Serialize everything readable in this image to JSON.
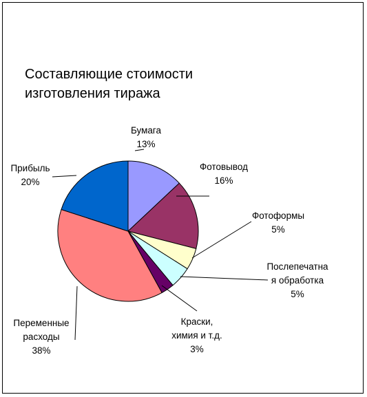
{
  "chart_data": {
    "type": "pie",
    "title_lines": [
      "Составляющие стоимости",
      "изготовления тиража"
    ],
    "slices": [
      {
        "label_lines": [
          "Бумага"
        ],
        "value": 13,
        "pct": "13%",
        "color": "#9999FF"
      },
      {
        "label_lines": [
          "Фотовывод"
        ],
        "value": 16,
        "pct": "16%",
        "color": "#993366"
      },
      {
        "label_lines": [
          "Фотоформы"
        ],
        "value": 5,
        "pct": "5%",
        "color": "#FFFFCC"
      },
      {
        "label_lines": [
          "Послепечатна",
          "я обработка"
        ],
        "value": 5,
        "pct": "5%",
        "color": "#CCFFFF"
      },
      {
        "label_lines": [
          "Краски,",
          "химия и т.д."
        ],
        "value": 3,
        "pct": "3%",
        "color": "#660066"
      },
      {
        "label_lines": [
          "Переменные",
          "расходы"
        ],
        "value": 38,
        "pct": "38%",
        "color": "#FF8080"
      },
      {
        "label_lines": [
          "Прибыль"
        ],
        "value": 20,
        "pct": "20%",
        "color": "#0066CC"
      }
    ]
  }
}
